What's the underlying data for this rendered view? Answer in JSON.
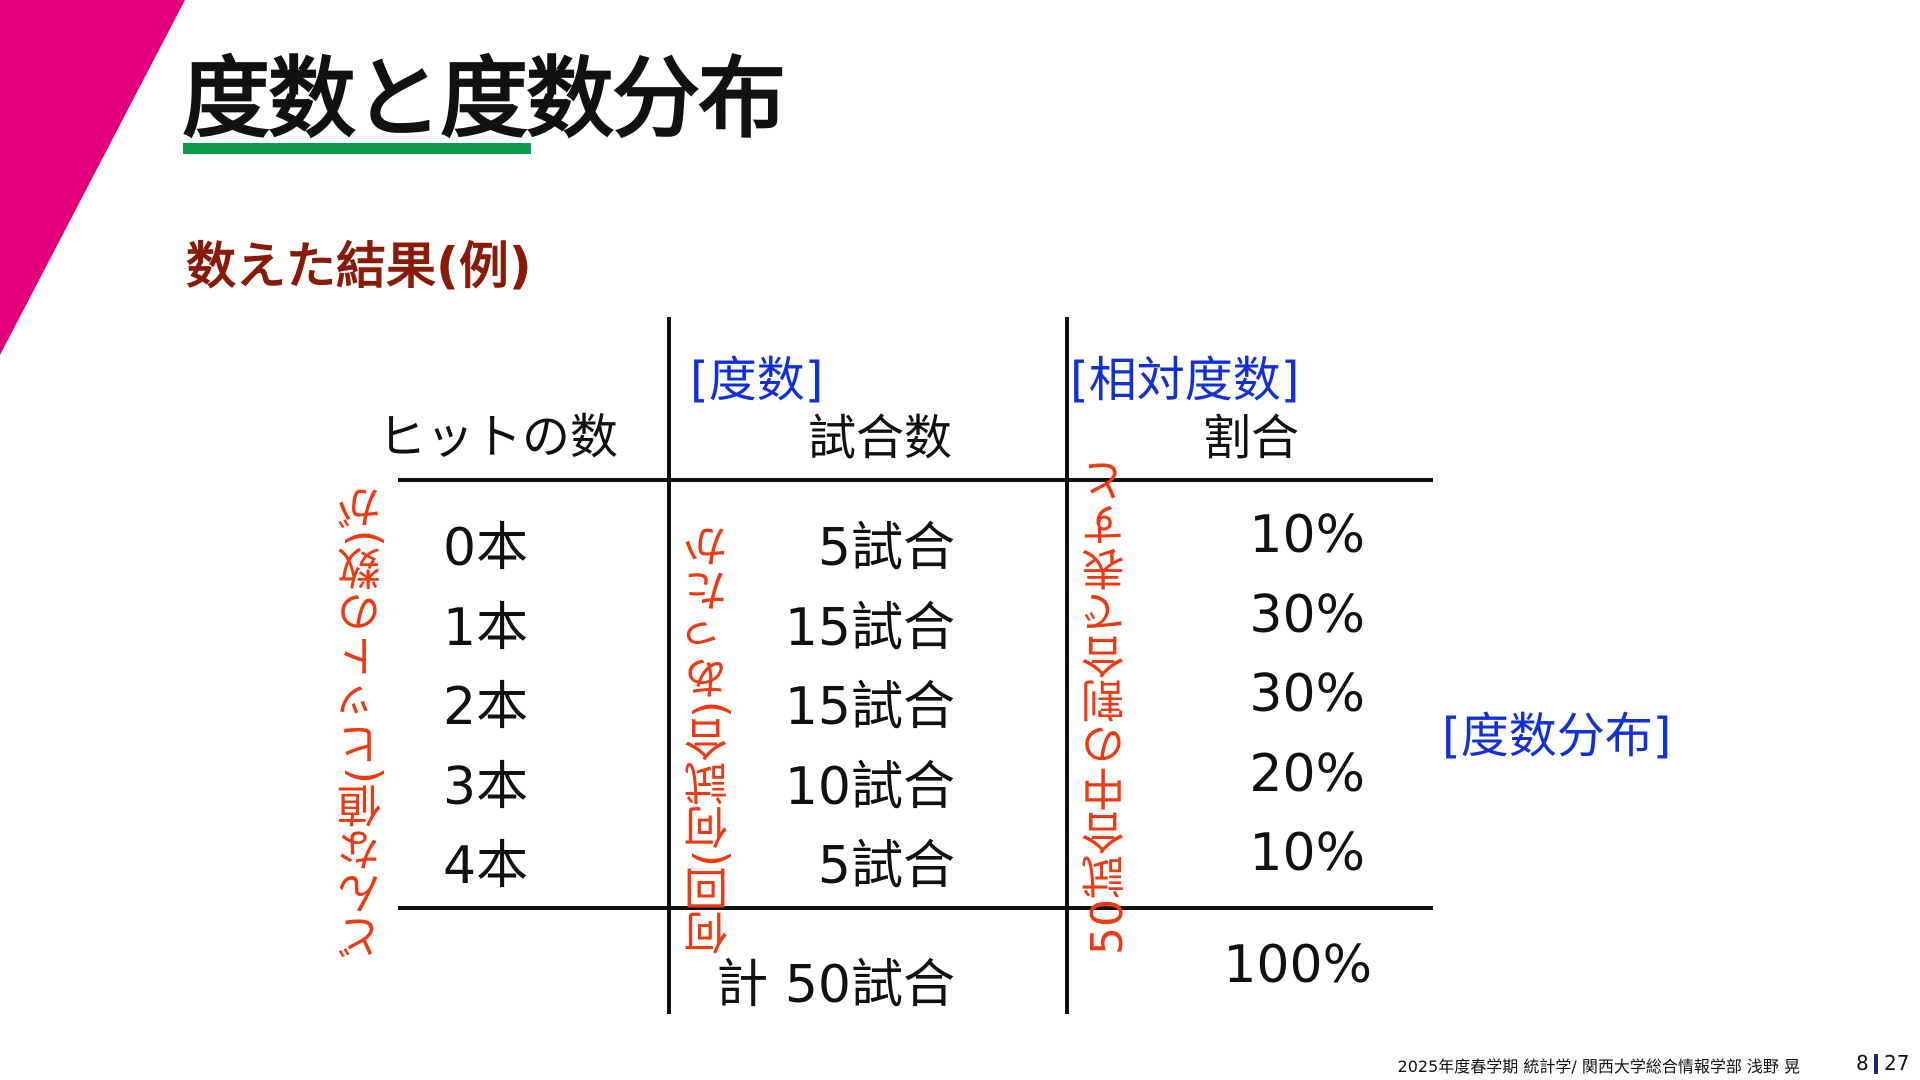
{
  "title": "度数と度数分布",
  "subtitle": "数えた結果(例)",
  "table": {
    "freq_label": "[度数]",
    "rel_label": "[相対度数]",
    "headers": {
      "value": "ヒットの数",
      "count": "試合数",
      "ratio": "割合"
    },
    "rows": [
      {
        "value": "0本",
        "count": "5試合",
        "ratio": "10%"
      },
      {
        "value": "1本",
        "count": "15試合",
        "ratio": "30%"
      },
      {
        "value": "2本",
        "count": "15試合",
        "ratio": "30%"
      },
      {
        "value": "3本",
        "count": "10試合",
        "ratio": "20%"
      },
      {
        "value": "4本",
        "count": "5試合",
        "ratio": "10%"
      }
    ],
    "total_count": "計 50試合",
    "total_ratio": "100%"
  },
  "annotations": {
    "values_note": "どんな値(ヒットの数)が",
    "count_note": "何回(何試合)あったか",
    "ratio_note": "50試合中の割合で表すと"
  },
  "distribution_label": "[度数分布]",
  "footer": {
    "text": "2025年度春学期 統計学/ 関西大学総合情報学部 浅野 晃",
    "page_current": "8",
    "page_total": "27"
  },
  "colors": {
    "corner": "#e2007a",
    "underline": "#0c9a4c",
    "subtitle": "#8a1a08",
    "blue_label": "#1230d8",
    "annotation": "#ee3a12"
  }
}
